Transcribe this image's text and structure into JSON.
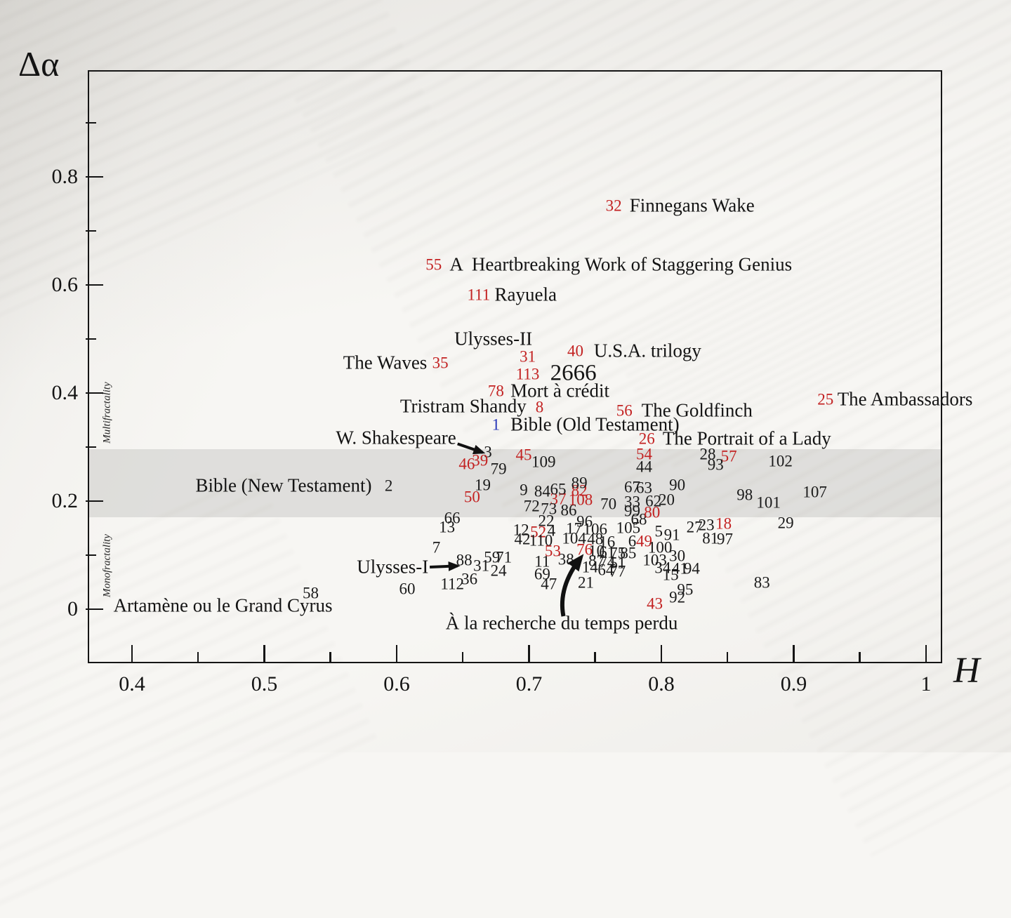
{
  "figure": {
    "x_axis_title": "H",
    "y_axis_title": "Δα",
    "zone_upper": "Multifractality",
    "zone_lower": "Monofractality"
  },
  "colors": {
    "black": "#1a1a1a",
    "red": "#c32222",
    "blue": "#2837b8",
    "band": "rgba(0,0,0,0.095)",
    "axis": "#151515"
  },
  "axes": {
    "x": {
      "min": 0.3666,
      "max": 1.0122,
      "major_ticks": [
        0.4,
        0.5,
        0.6,
        0.7,
        0.8,
        0.9,
        1.0
      ],
      "tick_labels": [
        "0.4",
        "0.5",
        "0.6",
        "0.7",
        "0.8",
        "0.9",
        "1"
      ],
      "minor_ticks": [
        0.45,
        0.55,
        0.65,
        0.75,
        0.85,
        0.95
      ]
    },
    "y": {
      "min": -0.1,
      "max": 0.9974,
      "major_ticks": [
        0,
        0.2,
        0.4,
        0.6,
        0.8
      ],
      "tick_labels": [
        "0",
        "0.2",
        "0.4",
        "0.6",
        "0.8"
      ],
      "minor_ticks": [
        0.1,
        0.3,
        0.5,
        0.7,
        0.9
      ]
    }
  },
  "chart_data": {
    "type": "scatter",
    "xlabel": "H",
    "ylabel": "Δα",
    "band": {
      "from": 0.17,
      "to": 0.296
    },
    "points": [
      [
        "1",
        0.675,
        0.342,
        "b"
      ],
      [
        "2",
        0.594,
        0.229,
        "k"
      ],
      [
        "3",
        0.669,
        0.291,
        "k"
      ],
      [
        "4",
        0.717,
        0.145,
        "k"
      ],
      [
        "5",
        0.798,
        0.144,
        "k"
      ],
      [
        "6",
        0.778,
        0.126,
        "k"
      ],
      [
        "7",
        0.63,
        0.114,
        "k"
      ],
      [
        "8",
        0.708,
        0.374,
        "r"
      ],
      [
        "9",
        0.696,
        0.221,
        "k"
      ],
      [
        "10",
        0.751,
        0.108,
        "k"
      ],
      [
        "11",
        0.71,
        0.088,
        "k"
      ],
      [
        "12",
        0.694,
        0.147,
        "k"
      ],
      [
        "13",
        0.638,
        0.152,
        "k"
      ],
      [
        "14",
        0.746,
        0.078,
        "k"
      ],
      [
        "15",
        0.807,
        0.064,
        "k"
      ],
      [
        "16",
        0.759,
        0.125,
        "k"
      ],
      [
        "17",
        0.734,
        0.149,
        "k"
      ],
      [
        "18",
        0.847,
        0.158,
        "r"
      ],
      [
        "19",
        0.665,
        0.23,
        "k"
      ],
      [
        "20",
        0.804,
        0.203,
        "k"
      ],
      [
        "21",
        0.743,
        0.049,
        "k"
      ],
      [
        "22",
        0.713,
        0.164,
        "k"
      ],
      [
        "23",
        0.834,
        0.156,
        "k"
      ],
      [
        "24",
        0.677,
        0.071,
        "k"
      ],
      [
        "25",
        0.924,
        0.388,
        "r"
      ],
      [
        "26",
        0.789,
        0.316,
        "r"
      ],
      [
        "27",
        0.825,
        0.152,
        "k"
      ],
      [
        "28",
        0.835,
        0.287,
        "k"
      ],
      [
        "29",
        0.894,
        0.16,
        "k"
      ],
      [
        "30",
        0.812,
        0.099,
        "k"
      ],
      [
        "31",
        0.699,
        0.468,
        "r"
      ],
      [
        "31",
        0.664,
        0.081,
        "k"
      ],
      [
        "32",
        0.764,
        0.747,
        "r"
      ],
      [
        "33",
        0.778,
        0.199,
        "k"
      ],
      [
        "34",
        0.801,
        0.077,
        "k"
      ],
      [
        "35",
        0.633,
        0.456,
        "r"
      ],
      [
        "36",
        0.655,
        0.056,
        "k"
      ],
      [
        "37",
        0.722,
        0.204,
        "r"
      ],
      [
        "38",
        0.728,
        0.092,
        "k"
      ],
      [
        "39",
        0.663,
        0.275,
        "r"
      ],
      [
        "40",
        0.735,
        0.478,
        "r"
      ],
      [
        "41",
        0.814,
        0.075,
        "k"
      ],
      [
        "42",
        0.695,
        0.13,
        "k"
      ],
      [
        "43",
        0.795,
        0.01,
        "r"
      ],
      [
        "44",
        0.787,
        0.264,
        "k"
      ],
      [
        "45",
        0.696,
        0.286,
        "r"
      ],
      [
        "46",
        0.653,
        0.269,
        "r"
      ],
      [
        "47",
        0.715,
        0.047,
        "k"
      ],
      [
        "48",
        0.75,
        0.13,
        "k"
      ],
      [
        "49",
        0.787,
        0.126,
        "r"
      ],
      [
        "50",
        0.657,
        0.208,
        "r"
      ],
      [
        "51",
        0.767,
        0.086,
        "k"
      ],
      [
        "52",
        0.707,
        0.143,
        "r"
      ],
      [
        "53",
        0.718,
        0.108,
        "r"
      ],
      [
        "54",
        0.787,
        0.287,
        "r"
      ],
      [
        "55",
        0.628,
        0.638,
        "r"
      ],
      [
        "56",
        0.772,
        0.368,
        "r"
      ],
      [
        "57",
        0.851,
        0.283,
        "r"
      ],
      [
        "58",
        0.535,
        0.03,
        "k"
      ],
      [
        "59",
        0.672,
        0.096,
        "k"
      ],
      [
        "60",
        0.608,
        0.038,
        "k"
      ],
      [
        "61",
        0.759,
        0.105,
        "k"
      ],
      [
        "62",
        0.794,
        0.2,
        "k"
      ],
      [
        "63",
        0.787,
        0.225,
        "k"
      ],
      [
        "64",
        0.758,
        0.073,
        "k"
      ],
      [
        "65",
        0.722,
        0.222,
        "k"
      ],
      [
        "66",
        0.642,
        0.169,
        "k"
      ],
      [
        "67",
        0.778,
        0.226,
        "k"
      ],
      [
        "68",
        0.783,
        0.166,
        "k"
      ],
      [
        "69",
        0.71,
        0.065,
        "k"
      ],
      [
        "70",
        0.76,
        0.195,
        "k"
      ],
      [
        "71",
        0.681,
        0.096,
        "k"
      ],
      [
        "72",
        0.702,
        0.191,
        "k"
      ],
      [
        "73",
        0.715,
        0.186,
        "k"
      ],
      [
        "74",
        0.759,
        0.087,
        "k"
      ],
      [
        "75",
        0.767,
        0.104,
        "k"
      ],
      [
        "76",
        0.742,
        0.11,
        "r"
      ],
      [
        "77",
        0.767,
        0.07,
        "k"
      ],
      [
        "78",
        0.675,
        0.404,
        "r"
      ],
      [
        "79",
        0.677,
        0.26,
        "k"
      ],
      [
        "80",
        0.793,
        0.179,
        "r"
      ],
      [
        "81",
        0.837,
        0.131,
        "k"
      ],
      [
        "82",
        0.738,
        0.219,
        "r"
      ],
      [
        "83",
        0.876,
        0.049,
        "k"
      ],
      [
        "84",
        0.71,
        0.218,
        "k"
      ],
      [
        "85",
        0.775,
        0.104,
        "k"
      ],
      [
        "86",
        0.73,
        0.183,
        "k"
      ],
      [
        "87",
        0.751,
        0.09,
        "k"
      ],
      [
        "88",
        0.651,
        0.091,
        "k"
      ],
      [
        "89",
        0.738,
        0.234,
        "k"
      ],
      [
        "90",
        0.812,
        0.23,
        "k"
      ],
      [
        "91",
        0.808,
        0.138,
        "k"
      ],
      [
        "92",
        0.812,
        0.022,
        "k"
      ],
      [
        "93",
        0.841,
        0.268,
        "k"
      ],
      [
        "94",
        0.823,
        0.075,
        "k"
      ],
      [
        "95",
        0.818,
        0.036,
        "k"
      ],
      [
        "96",
        0.742,
        0.162,
        "k"
      ],
      [
        "97",
        0.848,
        0.13,
        "k"
      ],
      [
        "98",
        0.863,
        0.212,
        "k"
      ],
      [
        "99",
        0.778,
        0.182,
        "k"
      ],
      [
        "100",
        0.799,
        0.114,
        "k"
      ],
      [
        "101",
        0.881,
        0.197,
        "k"
      ],
      [
        "102",
        0.89,
        0.274,
        "k"
      ],
      [
        "103",
        0.795,
        0.091,
        "k"
      ],
      [
        "104",
        0.734,
        0.131,
        "k"
      ],
      [
        "105",
        0.775,
        0.151,
        "k"
      ],
      [
        "106",
        0.75,
        0.148,
        "k"
      ],
      [
        "107",
        0.916,
        0.217,
        "k"
      ],
      [
        "108",
        0.739,
        0.203,
        "r"
      ],
      [
        "109",
        0.711,
        0.273,
        "k"
      ],
      [
        "110",
        0.709,
        0.127,
        "k"
      ],
      [
        "111",
        0.662,
        0.582,
        "r"
      ],
      [
        "112",
        0.642,
        0.047,
        "k"
      ],
      [
        "113",
        0.699,
        0.435,
        "r"
      ]
    ],
    "annotations": [
      {
        "t": "Finnegans Wake",
        "H": 0.776,
        "a": 0.747,
        "al": "l",
        "s": "n"
      },
      {
        "t": "A  Heartbreaking Work of Staggering Genius",
        "H": 0.64,
        "a": 0.638,
        "al": "l",
        "s": "n"
      },
      {
        "t": "Rayuela",
        "H": 0.674,
        "a": 0.582,
        "al": "l",
        "s": "n"
      },
      {
        "t": "The Waves",
        "H": 0.623,
        "a": 0.456,
        "al": "r",
        "s": "n"
      },
      {
        "t": "Ulysses-II",
        "H": 0.673,
        "a": 0.5,
        "al": "c",
        "s": "n"
      },
      {
        "t": "U.S.A. trilogy",
        "H": 0.749,
        "a": 0.478,
        "al": "l",
        "s": "n"
      },
      {
        "t": "2666",
        "H": 0.716,
        "a": 0.436,
        "al": "l",
        "s": "big"
      },
      {
        "t": "Mort à crédit",
        "H": 0.686,
        "a": 0.404,
        "al": "l",
        "s": "n"
      },
      {
        "t": "Tristram Shandy",
        "H": 0.698,
        "a": 0.375,
        "al": "r",
        "s": "n"
      },
      {
        "t": "The Goldfinch",
        "H": 0.785,
        "a": 0.368,
        "al": "l",
        "s": "n"
      },
      {
        "t": "Bible (Old Testament)",
        "H": 0.686,
        "a": 0.342,
        "al": "l",
        "s": "n"
      },
      {
        "t": "The Ambassadors",
        "H": 0.933,
        "a": 0.388,
        "al": "l",
        "s": "n"
      },
      {
        "t": "The Portrait of a Lady",
        "H": 0.801,
        "a": 0.316,
        "al": "l",
        "s": "n"
      },
      {
        "t": "W. Shakespeare",
        "H": 0.645,
        "a": 0.317,
        "al": "r",
        "s": "n"
      },
      {
        "t": "Bible (New Testament)",
        "H": 0.448,
        "a": 0.229,
        "al": "l",
        "s": "n"
      },
      {
        "t": "Ulysses-I",
        "H": 0.624,
        "a": 0.078,
        "al": "r",
        "s": "n"
      },
      {
        "t": "Artamène ou le Grand Cyrus",
        "H": 0.386,
        "a": 0.006,
        "al": "l",
        "s": "n"
      },
      {
        "t": "À la recherche du temps perdu",
        "H": 0.637,
        "a": -0.026,
        "al": "l",
        "s": "n"
      }
    ],
    "arrows": [
      {
        "x1": 0.646,
        "y1": 0.306,
        "x2": 0.665,
        "y2": 0.29,
        "w": 4,
        "curve": 0
      },
      {
        "x1": 0.625,
        "y1": 0.078,
        "x2": 0.646,
        "y2": 0.08,
        "w": 4,
        "curve": 0
      },
      {
        "x1": 0.726,
        "y1": -0.013,
        "x2": 0.739,
        "y2": 0.095,
        "w": 6,
        "curve": 1
      }
    ]
  }
}
